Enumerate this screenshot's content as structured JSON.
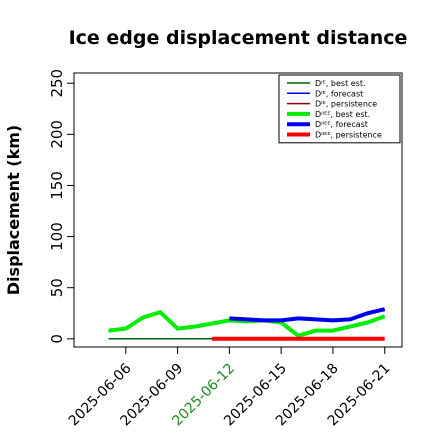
{
  "chart_data": {
    "type": "line",
    "title": "Ice edge displacement distance",
    "xlabel": "",
    "ylabel": "Displacement (km)",
    "ylim": [
      -8,
      260
    ],
    "yticks": [
      0,
      50,
      100,
      150,
      200,
      250
    ],
    "xlim": [
      "2025-06-03",
      "2025-06-22"
    ],
    "xticks": [
      "2025-06-06",
      "2025-06-09",
      "2025-06-12",
      "2025-06-15",
      "2025-06-18",
      "2025-06-21"
    ],
    "highlight_tick": "2025-06-12",
    "highlight_color": "#228b22",
    "legend_position": "top-right",
    "legend": [
      {
        "label": "Dᴵᴱ, best est.",
        "color": "#006400",
        "width": 1.5
      },
      {
        "label": "Dᴵᴱ, forecast",
        "color": "#0000ff",
        "width": 1.5
      },
      {
        "label": "Dᴵᴱ, persistence",
        "color": "#8b0000",
        "width": 1.5
      },
      {
        "label": "Dᴵᴵᴱᴱ, best est.",
        "color": "#00ee00",
        "width": 4
      },
      {
        "label": "Dᴵᴵᴱᴱ, forecast",
        "color": "#0000ee",
        "width": 4
      },
      {
        "label": "Dᴵᴵᴱᴱ, persistence",
        "color": "#ff0000",
        "width": 4
      }
    ],
    "series": [
      {
        "color": "#006400",
        "width": 1.5,
        "x": [
          "2025-06-05",
          "2025-06-06",
          "2025-06-07",
          "2025-06-08",
          "2025-06-09",
          "2025-06-10",
          "2025-06-11"
        ],
        "y": [
          0,
          0,
          0,
          0,
          0,
          0,
          0
        ]
      },
      {
        "color": "#00ee00",
        "width": 4,
        "x": [
          "2025-06-05",
          "2025-06-06",
          "2025-06-07",
          "2025-06-08",
          "2025-06-09",
          "2025-06-10",
          "2025-06-11",
          "2025-06-12",
          "2025-06-13",
          "2025-06-14",
          "2025-06-15",
          "2025-06-16",
          "2025-06-17",
          "2025-06-18",
          "2025-06-19",
          "2025-06-20",
          "2025-06-21"
        ],
        "y": [
          8,
          10,
          21,
          26,
          10,
          12,
          15,
          18,
          17,
          18,
          16,
          3,
          8,
          8,
          12,
          16,
          22
        ]
      },
      {
        "color": "#0000ee",
        "width": 4,
        "x": [
          "2025-06-12",
          "2025-06-13",
          "2025-06-14",
          "2025-06-15",
          "2025-06-16",
          "2025-06-17",
          "2025-06-18",
          "2025-06-19",
          "2025-06-20",
          "2025-06-21"
        ],
        "y": [
          20,
          19,
          18,
          18,
          20,
          19,
          18,
          19,
          25,
          29
        ]
      },
      {
        "color": "#ff0000",
        "width": 4,
        "x": [
          "2025-06-11",
          "2025-06-12",
          "2025-06-13",
          "2025-06-14",
          "2025-06-15",
          "2025-06-16",
          "2025-06-17",
          "2025-06-18",
          "2025-06-19",
          "2025-06-20",
          "2025-06-21"
        ],
        "y": [
          0,
          0,
          0,
          0,
          0,
          0,
          0,
          0,
          0,
          0,
          0
        ]
      }
    ]
  }
}
